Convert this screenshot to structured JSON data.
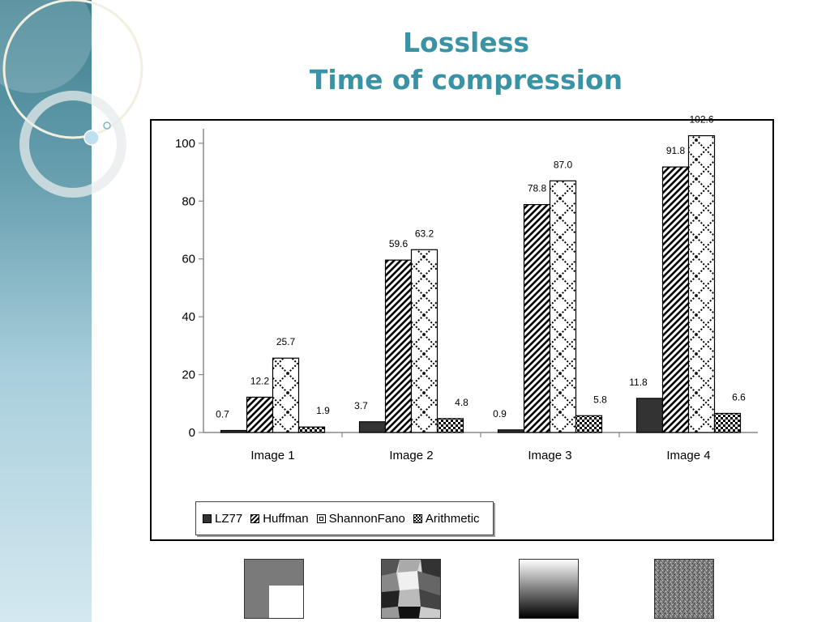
{
  "slide": {
    "title_line1": "Lossless",
    "title_line2": "Time of compression"
  },
  "colors": {
    "title": "#3a93a5",
    "panel_top": "#3d7f8f",
    "panel_bottom": "#d4e8f0",
    "bar_dark": "#333333"
  },
  "chart_data": {
    "type": "bar",
    "title": "",
    "xlabel": "",
    "ylabel": "",
    "categories": [
      "Image 1",
      "Image 2",
      "Image 3",
      "Image 4"
    ],
    "series": [
      {
        "name": "LZ77",
        "values": [
          0.7,
          3.7,
          0.9,
          11.8
        ],
        "labels": [
          "0.7",
          "3.7",
          "0.9",
          "11.8"
        ],
        "pattern": "solid-dark"
      },
      {
        "name": "Huffman",
        "values": [
          12.2,
          59.6,
          78.8,
          91.8
        ],
        "labels": [
          "12.2",
          "59.6",
          "78.8",
          "91.8"
        ],
        "pattern": "diagonal-stripes"
      },
      {
        "name": "ShannonFano",
        "values": [
          25.7,
          63.2,
          87.0,
          102.6
        ],
        "labels": [
          "25.7",
          "63.2",
          "87.0",
          "102.6"
        ],
        "pattern": "diamond-lattice"
      },
      {
        "name": "Arithmetic",
        "values": [
          1.9,
          4.8,
          5.8,
          6.6
        ],
        "labels": [
          "1.9",
          "4.8",
          "5.8",
          "6.6"
        ],
        "pattern": "checker"
      }
    ],
    "ylim": [
      0,
      105
    ],
    "yticks": [
      0,
      20,
      40,
      60,
      80,
      100
    ],
    "grid": false,
    "legend_position": "bottom-left"
  },
  "thumbnails": [
    {
      "name": "image-1-thumbnail",
      "description_icon": "gray-square-white-corner"
    },
    {
      "name": "image-2-thumbnail",
      "description_icon": "blob-mosaic"
    },
    {
      "name": "image-3-thumbnail",
      "description_icon": "vertical-gradient"
    },
    {
      "name": "image-4-thumbnail",
      "description_icon": "noise-texture"
    }
  ]
}
